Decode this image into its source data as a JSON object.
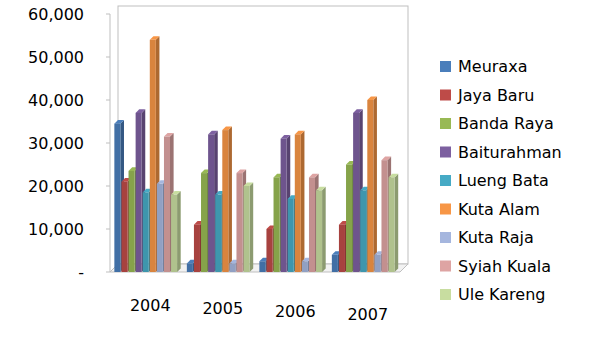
{
  "chart_data": {
    "type": "bar",
    "categories": [
      "2004",
      "2005",
      "2006",
      "2007"
    ],
    "series": [
      {
        "name": "Meuraxa",
        "color": "#4a7ebb",
        "values": [
          34500,
          2000,
          2500,
          4000
        ]
      },
      {
        "name": "Jaya Baru",
        "color": "#be4b48",
        "values": [
          21000,
          11000,
          10000,
          11000
        ]
      },
      {
        "name": "Banda Raya",
        "color": "#98b954",
        "values": [
          23500,
          23000,
          22000,
          25000
        ]
      },
      {
        "name": "Baiturahman",
        "color": "#7d60a0",
        "values": [
          37000,
          32000,
          31000,
          37000
        ]
      },
      {
        "name": "Lueng Bata",
        "color": "#46aac5",
        "values": [
          18500,
          18000,
          17000,
          19000
        ]
      },
      {
        "name": "Kuta Alam",
        "color": "#f79646",
        "values": [
          54000,
          33000,
          32000,
          40000
        ]
      },
      {
        "name": "Kuta Raja",
        "color": "#a5b6de",
        "values": [
          20500,
          2000,
          2500,
          4000
        ]
      },
      {
        "name": "Syiah Kuala",
        "color": "#dea4a3",
        "values": [
          31500,
          23000,
          22000,
          26000
        ]
      },
      {
        "name": "Ule Kareng",
        "color": "#c8dda0",
        "values": [
          18000,
          20000,
          19000,
          22000
        ]
      }
    ],
    "ylim": [
      0,
      60000
    ],
    "yticks": [
      {
        "value": 0,
        "label": "-"
      },
      {
        "value": 10000,
        "label": "10,000"
      },
      {
        "value": 20000,
        "label": "20,000"
      },
      {
        "value": 30000,
        "label": "30,000"
      },
      {
        "value": 40000,
        "label": "40,000"
      },
      {
        "value": 50000,
        "label": "50,000"
      },
      {
        "value": 60000,
        "label": "60,000"
      }
    ],
    "grid": false,
    "legend": "right"
  }
}
